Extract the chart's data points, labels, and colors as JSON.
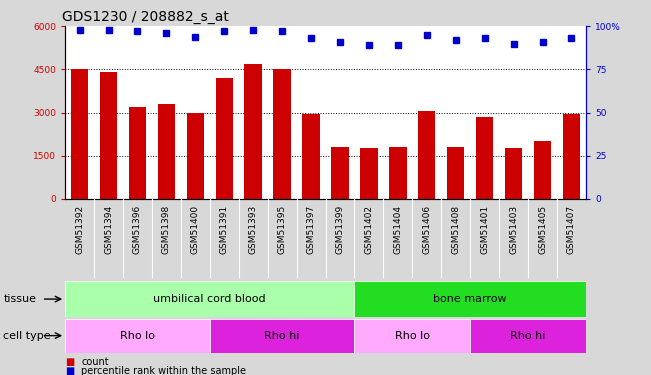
{
  "title": "GDS1230 / 208882_s_at",
  "samples": [
    "GSM51392",
    "GSM51394",
    "GSM51396",
    "GSM51398",
    "GSM51400",
    "GSM51391",
    "GSM51393",
    "GSM51395",
    "GSM51397",
    "GSM51399",
    "GSM51402",
    "GSM51404",
    "GSM51406",
    "GSM51408",
    "GSM51401",
    "GSM51403",
    "GSM51405",
    "GSM51407"
  ],
  "counts": [
    4500,
    4400,
    3200,
    3300,
    3000,
    4200,
    4700,
    4500,
    2950,
    1800,
    1750,
    1800,
    3050,
    1800,
    2850,
    1750,
    2000,
    2950
  ],
  "percentile_ranks": [
    98,
    98,
    97,
    96,
    94,
    97,
    98,
    97,
    93,
    91,
    89,
    89,
    95,
    92,
    93,
    90,
    91,
    93
  ],
  "bar_color": "#cc0000",
  "dot_color": "#0000cc",
  "ylim_left": [
    0,
    6000
  ],
  "ylim_right": [
    0,
    100
  ],
  "yticks_left": [
    0,
    1500,
    3000,
    4500,
    6000
  ],
  "yticks_right": [
    0,
    25,
    50,
    75,
    100
  ],
  "ytick_labels_right": [
    "0",
    "25",
    "50",
    "75",
    "100%"
  ],
  "tissue_labels": [
    {
      "text": "umbilical cord blood",
      "start": 0,
      "end": 9,
      "color": "#aaffaa"
    },
    {
      "text": "bone marrow",
      "start": 10,
      "end": 17,
      "color": "#22dd22"
    }
  ],
  "cell_type_labels": [
    {
      "text": "Rho lo",
      "start": 0,
      "end": 4,
      "color": "#ffaaff"
    },
    {
      "text": "Rho hi",
      "start": 5,
      "end": 9,
      "color": "#dd22dd"
    },
    {
      "text": "Rho lo",
      "start": 10,
      "end": 13,
      "color": "#ffaaff"
    },
    {
      "text": "Rho hi",
      "start": 14,
      "end": 17,
      "color": "#dd22dd"
    }
  ],
  "legend_items": [
    {
      "label": "count",
      "color": "#cc0000"
    },
    {
      "label": "percentile rank within the sample",
      "color": "#0000cc"
    }
  ],
  "tissue_row_label": "tissue",
  "cell_type_row_label": "cell type",
  "background_color": "#d8d8d8",
  "plot_bg_color": "#ffffff",
  "xtick_bg_color": "#d0d0d0",
  "title_fontsize": 10,
  "tick_fontsize": 6.5,
  "label_fontsize": 8
}
